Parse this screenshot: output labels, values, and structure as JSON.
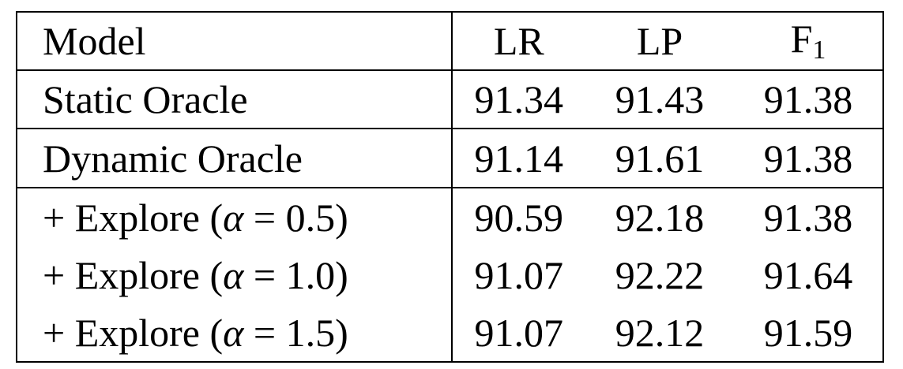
{
  "table": {
    "headers": {
      "model": "Model",
      "lr": "LR",
      "lp": "LP",
      "f1_base": "F",
      "f1_sub": "1"
    },
    "rows": [
      {
        "model": "Static Oracle",
        "lr": "91.34",
        "lp": "91.43",
        "f1": "91.38"
      },
      {
        "model": "Dynamic Oracle",
        "lr": "91.14",
        "lp": "91.61",
        "f1": "91.38"
      },
      {
        "model_prefix": "+ Explore (",
        "alpha": "α",
        "eq": " = ",
        "value": "0.5",
        "suffix": ")",
        "lr": "90.59",
        "lp": "92.18",
        "f1": "91.38"
      },
      {
        "model_prefix": "+ Explore (",
        "alpha": "α",
        "eq": " = ",
        "value": "1.0",
        "suffix": ")",
        "lr": "91.07",
        "lp": "92.22",
        "f1": "91.64"
      },
      {
        "model_prefix": "+ Explore (",
        "alpha": "α",
        "eq": " = ",
        "value": "1.5",
        "suffix": ")",
        "lr": "91.07",
        "lp": "92.12",
        "f1": "91.59"
      }
    ]
  }
}
